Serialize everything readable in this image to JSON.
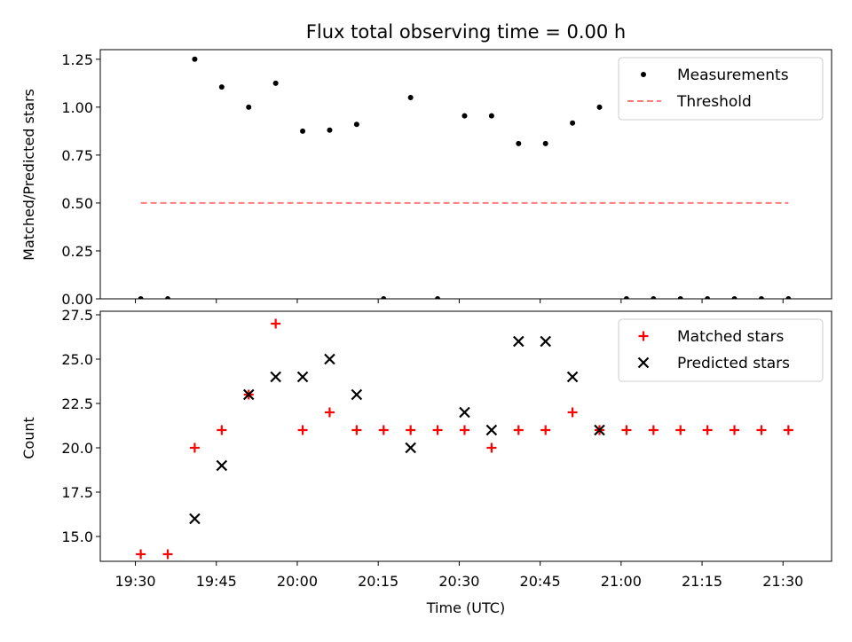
{
  "chart_data": [
    {
      "type": "scatter",
      "title": "Flux total observing time = 0.00 h",
      "xlabel": "",
      "ylabel": "Matched/Predicted stars",
      "ylim": [
        0,
        1.3
      ],
      "yticks": [
        "0.00",
        "0.25",
        "0.50",
        "0.75",
        "1.00",
        "1.25"
      ],
      "legend": {
        "placement": "top-right",
        "entries": [
          "Measurements",
          "Threshold"
        ]
      },
      "series": [
        {
          "name": "Measurements",
          "color": "#000000",
          "marker": "dot",
          "x": [
            "19:31",
            "19:36",
            "19:41",
            "19:46",
            "19:51",
            "19:56",
            "20:01",
            "20:06",
            "20:11",
            "20:16",
            "20:21",
            "20:26",
            "20:31",
            "20:36",
            "20:41",
            "20:46",
            "20:51",
            "20:56",
            "21:01",
            "21:06",
            "21:11",
            "21:16",
            "21:21",
            "21:26",
            "21:31"
          ],
          "y": [
            0,
            0,
            1.25,
            1.105,
            1.0,
            1.125,
            0.875,
            0.88,
            0.91,
            0,
            1.05,
            0,
            0.955,
            0.955,
            0.81,
            0.81,
            0.917,
            1.0,
            0,
            0,
            0,
            0,
            0,
            0,
            0
          ]
        },
        {
          "name": "Threshold",
          "color": "#ff7f7f",
          "line": "dashed",
          "x": [
            "19:31",
            "21:31"
          ],
          "y": [
            0.5,
            0.5
          ]
        }
      ]
    },
    {
      "type": "scatter",
      "title": "",
      "xlabel": "Time (UTC)",
      "ylabel": "Count",
      "ylim": [
        13.6,
        27.7
      ],
      "yticks": [
        "15.0",
        "17.5",
        "20.0",
        "22.5",
        "25.0",
        "27.5"
      ],
      "xticks": [
        "19:30",
        "19:45",
        "20:00",
        "20:15",
        "20:30",
        "20:45",
        "21:00",
        "21:15",
        "21:30"
      ],
      "legend": {
        "placement": "top-right",
        "entries": [
          "Matched stars",
          "Predicted stars"
        ]
      },
      "series": [
        {
          "name": "Matched stars",
          "color": "#ff0000",
          "marker": "plus",
          "x": [
            "19:31",
            "19:36",
            "19:41",
            "19:46",
            "19:51",
            "19:56",
            "20:01",
            "20:06",
            "20:11",
            "20:16",
            "20:21",
            "20:26",
            "20:31",
            "20:36",
            "20:41",
            "20:46",
            "20:51",
            "20:56",
            "21:01",
            "21:06",
            "21:11",
            "21:16",
            "21:21",
            "21:26",
            "21:31"
          ],
          "y": [
            14,
            14,
            20,
            21,
            23,
            27,
            21,
            22,
            21,
            21,
            21,
            21,
            21,
            20,
            21,
            21,
            22,
            21,
            21,
            21,
            21,
            21,
            21,
            21,
            21
          ]
        },
        {
          "name": "Predicted stars",
          "color": "#000000",
          "marker": "x",
          "x": [
            "19:41",
            "19:46",
            "19:51",
            "19:56",
            "20:01",
            "20:06",
            "20:11",
            "20:21",
            "20:31",
            "20:36",
            "20:41",
            "20:46",
            "20:51",
            "20:56"
          ],
          "y": [
            16,
            19,
            23,
            24,
            24,
            25,
            23,
            20,
            22,
            21,
            26,
            26,
            24,
            21
          ]
        }
      ]
    }
  ]
}
